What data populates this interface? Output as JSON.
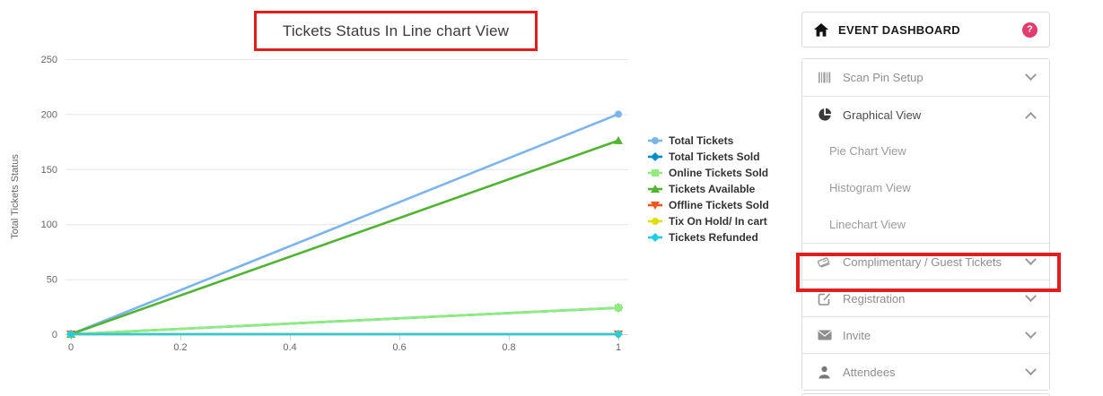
{
  "chart": {
    "title": "Tickets Status In Line chart View"
  },
  "chart_data": {
    "type": "line",
    "title": "Tickets Status In Line chart View",
    "xlabel": "",
    "ylabel": "Total Tickets Status",
    "x": [
      0,
      1
    ],
    "xlim": [
      0,
      1
    ],
    "ylim": [
      0,
      250
    ],
    "xtick_labels": [
      "0",
      "0.2",
      "0.4",
      "0.6",
      "0.8",
      "1"
    ],
    "xticks": [
      0,
      0.2,
      0.4,
      0.6,
      0.8,
      1
    ],
    "ytick_labels": [
      "0",
      "50",
      "100",
      "150",
      "200",
      "250"
    ],
    "yticks": [
      0,
      50,
      100,
      150,
      200,
      250
    ],
    "grid": "horizontal",
    "legend_position": "right",
    "series": [
      {
        "name": "Total Tickets",
        "color": "#7cb5ec",
        "marker": "circle",
        "values": [
          0,
          200
        ]
      },
      {
        "name": "Total Tickets Sold",
        "color": "#058dc7",
        "marker": "diamond",
        "values": [
          0,
          24
        ]
      },
      {
        "name": "Online Tickets Sold",
        "color": "#90ed7d",
        "marker": "square",
        "values": [
          0,
          24
        ]
      },
      {
        "name": "Tickets Available",
        "color": "#50b432",
        "marker": "triangle",
        "values": [
          0,
          176
        ]
      },
      {
        "name": "Offline Tickets Sold",
        "color": "#ed561b",
        "marker": "triangle-down",
        "values": [
          0,
          0
        ]
      },
      {
        "name": "Tix On Hold/ In cart",
        "color": "#dddf00",
        "marker": "circle",
        "values": [
          0,
          0
        ]
      },
      {
        "name": "Tickets Refunded",
        "color": "#24cbe5",
        "marker": "diamond",
        "values": [
          0,
          0
        ]
      }
    ]
  },
  "annotations": {
    "highlight_color": "#e11d1d"
  },
  "sidebar": {
    "header": {
      "label": "EVENT DASHBOARD",
      "help_color": "#e23c6e"
    },
    "items": [
      {
        "label": "Scan Pin Setup",
        "icon": "barcode-icon",
        "chevron": "down"
      },
      {
        "label": "Graphical View",
        "icon": "pie-chart-icon",
        "chevron": "up",
        "expanded": true
      },
      {
        "label": "Pie Chart View",
        "type": "sub"
      },
      {
        "label": "Histogram View",
        "type": "sub"
      },
      {
        "label": "Linechart View",
        "type": "sub",
        "highlighted": true
      },
      {
        "label": "Complimentary / Guest Tickets",
        "icon": "tickets-icon",
        "chevron": "down"
      },
      {
        "label": "Registration",
        "icon": "edit-square-icon",
        "chevron": "down"
      },
      {
        "label": "Invite",
        "icon": "envelope-icon",
        "chevron": "down"
      },
      {
        "label": "Attendees",
        "icon": "person-icon",
        "chevron": "down"
      }
    ]
  }
}
